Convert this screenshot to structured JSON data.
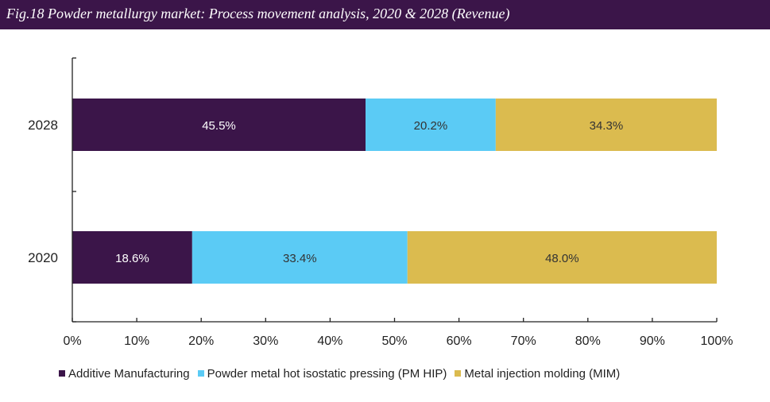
{
  "figure": {
    "title": "Fig.18  Powder metallurgy market: Process movement analysis, 2020 & 2028 (Revenue)"
  },
  "colors": {
    "title_bar": "#3b1549",
    "axis": "#222222"
  },
  "chart_data": {
    "type": "bar",
    "orientation": "horizontal",
    "stacked": "percent",
    "categories": [
      "2028",
      "2020"
    ],
    "series": [
      {
        "name": "Additive Manufacturing",
        "color": "#3b1549",
        "values": [
          45.5,
          18.6
        ],
        "labels": [
          "45.5%",
          "18.6%"
        ],
        "label_color": "#ffffff"
      },
      {
        "name": "Powder metal hot isostatic pressing (PM HIP)",
        "color": "#5bcbf5",
        "values": [
          20.2,
          33.4
        ],
        "labels": [
          "20.2%",
          "33.4%"
        ],
        "label_color": "#333333"
      },
      {
        "name": "Metal injection molding (MIM)",
        "color": "#dbbb4f",
        "values": [
          34.3,
          48.0
        ],
        "labels": [
          "34.3%",
          "48.0%"
        ],
        "label_color": "#333333"
      }
    ],
    "xlim": [
      0,
      100
    ],
    "xticks": [
      0,
      10,
      20,
      30,
      40,
      50,
      60,
      70,
      80,
      90,
      100
    ],
    "xtick_labels": [
      "0%",
      "10%",
      "20%",
      "30%",
      "40%",
      "50%",
      "60%",
      "70%",
      "80%",
      "90%",
      "100%"
    ],
    "grid": false,
    "legend_position": "bottom"
  }
}
